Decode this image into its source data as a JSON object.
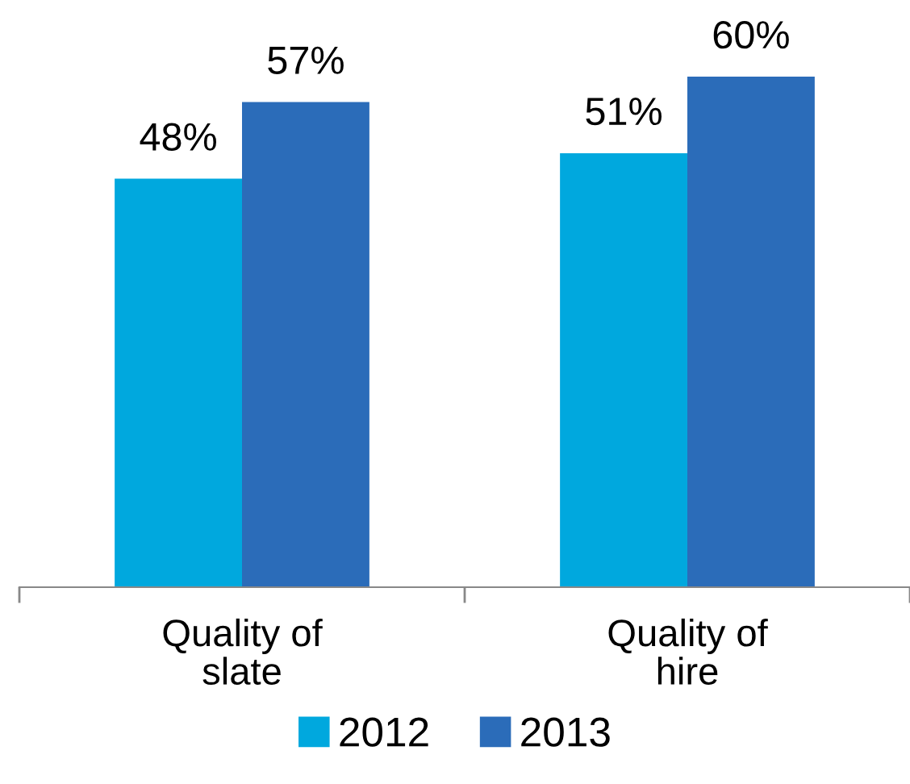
{
  "chart_data": {
    "type": "bar",
    "categories": [
      "Quality of\nslate",
      "Quality of\nhire"
    ],
    "series": [
      {
        "name": "2012",
        "color": "#00a8de",
        "values": [
          48,
          51
        ],
        "value_labels": [
          "48%",
          "51%"
        ]
      },
      {
        "name": "2013",
        "color": "#2b6cb9",
        "values": [
          57,
          60
        ],
        "value_labels": [
          "57%",
          "60%"
        ]
      }
    ],
    "grid": false,
    "legend": "bottom"
  }
}
